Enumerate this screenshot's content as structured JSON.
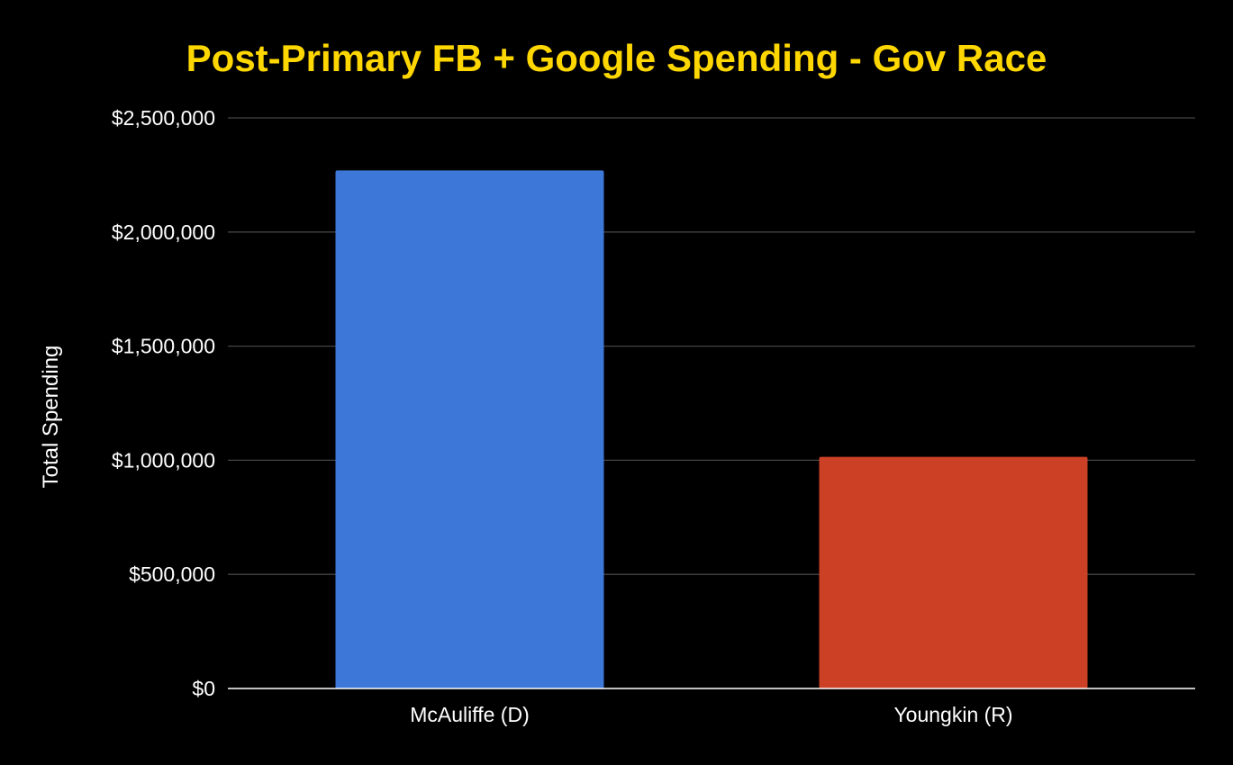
{
  "chart_data": {
    "type": "bar",
    "title": "Post-Primary FB + Google Spending - Gov Race",
    "xlabel": "",
    "ylabel": "Total Spending",
    "categories": [
      "McAuliffe (D)",
      "Youngkin (R)"
    ],
    "values": [
      2270000,
      1015000
    ],
    "ylim": [
      0,
      2500000
    ],
    "yticks": [
      0,
      500000,
      1000000,
      1500000,
      2000000,
      2500000
    ],
    "ytick_labels": [
      "$0",
      "$500,000",
      "$1,000,000",
      "$1,500,000",
      "$2,000,000",
      "$2,500,000"
    ],
    "grid": true,
    "legend": "none"
  },
  "colors": {
    "background": "#000000",
    "title": "#ffd700",
    "bars": [
      "#3d78d8",
      "#cc4125"
    ],
    "gridline": "#444444",
    "baseline": "#ffffff",
    "text": "#ffffff"
  }
}
